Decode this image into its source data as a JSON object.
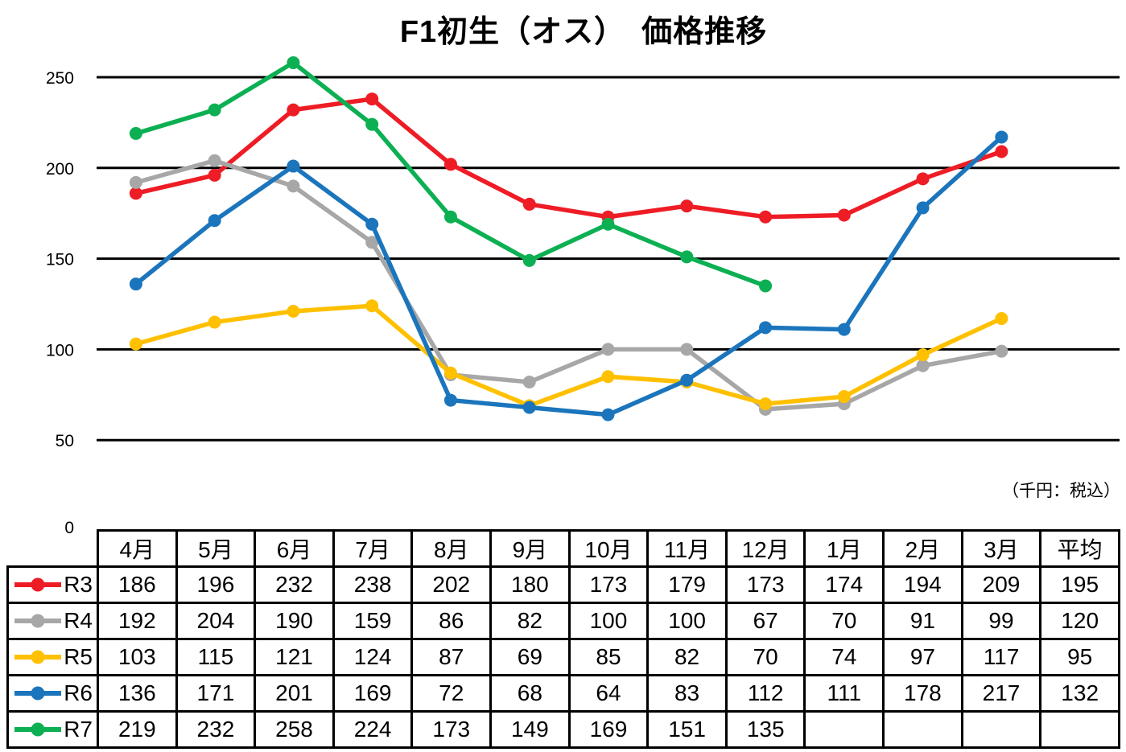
{
  "chart_data": {
    "type": "line",
    "title": "F1初生（オス）　価格推移",
    "unit_note": "（千円：税込）",
    "categories": [
      "4月",
      "5月",
      "6月",
      "7月",
      "8月",
      "9月",
      "10月",
      "11月",
      "12月",
      "1月",
      "2月",
      "3月"
    ],
    "average_label": "平均",
    "xlabel": "",
    "ylabel": "",
    "y_ticks": [
      0,
      50,
      100,
      150,
      200,
      250
    ],
    "ylim": [
      0,
      270
    ],
    "grid": "horizontal-black",
    "legend_position": "table-left",
    "series": [
      {
        "name": "R3",
        "color": "#EE1C25",
        "values": [
          186,
          196,
          232,
          238,
          202,
          180,
          173,
          179,
          173,
          174,
          194,
          209
        ],
        "average": 195
      },
      {
        "name": "R4",
        "color": "#A7A7A7",
        "values": [
          192,
          204,
          190,
          159,
          86,
          82,
          100,
          100,
          67,
          70,
          91,
          99
        ],
        "average": 120
      },
      {
        "name": "R5",
        "color": "#FFC000",
        "values": [
          103,
          115,
          121,
          124,
          87,
          69,
          85,
          82,
          70,
          74,
          97,
          117
        ],
        "average": 95
      },
      {
        "name": "R6",
        "color": "#1B75BC",
        "values": [
          136,
          171,
          201,
          169,
          72,
          68,
          64,
          83,
          112,
          111,
          178,
          217
        ],
        "average": 132
      },
      {
        "name": "R7",
        "color": "#0CB053",
        "values": [
          219,
          232,
          258,
          224,
          173,
          149,
          169,
          151,
          135,
          null,
          null,
          null
        ],
        "average": null
      }
    ]
  }
}
